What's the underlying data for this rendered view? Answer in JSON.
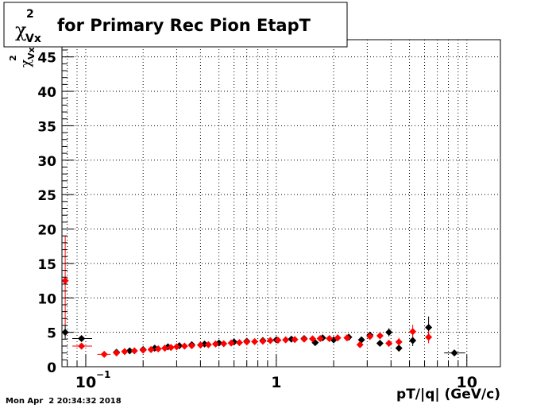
{
  "title": {
    "chi": "χ",
    "superscript": "2",
    "subscript": "Vx",
    "text": "for Primary Rec Pion EtapT"
  },
  "timestamp": "Mon Apr  2 20:34:32 2018",
  "chart_data": {
    "type": "scatter",
    "title": "χ²Vx for Primary Rec Pion EtapT",
    "xlabel": "pT/|q| (GeV/c)",
    "ylabel": "χ²Vx",
    "xscale": "log",
    "xlim": [
      0.075,
      15
    ],
    "ylim": [
      0,
      47.5
    ],
    "grid": true,
    "x_ticks": [
      {
        "value": 0.1,
        "base": "10",
        "exp": "−1"
      },
      {
        "value": 1,
        "base": "1",
        "exp": ""
      },
      {
        "value": 10,
        "base": "10",
        "exp": ""
      }
    ],
    "y_ticks": [
      0,
      5,
      10,
      15,
      20,
      25,
      30,
      35,
      40,
      45
    ],
    "series": [
      {
        "color": "#000000",
        "points": [
          {
            "x": 0.078,
            "y": 5.0,
            "ey": 1.0
          },
          {
            "x": 0.095,
            "y": 4.1,
            "ey": 0.4,
            "xlo": 0.085,
            "xhi": 0.108
          },
          {
            "x": 0.145,
            "y": 2.1,
            "ey": 0.2
          },
          {
            "x": 0.17,
            "y": 2.3
          },
          {
            "x": 0.2,
            "y": 2.5
          },
          {
            "x": 0.23,
            "y": 2.7
          },
          {
            "x": 0.27,
            "y": 2.9
          },
          {
            "x": 0.31,
            "y": 3.05
          },
          {
            "x": 0.36,
            "y": 3.2
          },
          {
            "x": 0.42,
            "y": 3.3
          },
          {
            "x": 0.5,
            "y": 3.45
          },
          {
            "x": 0.6,
            "y": 3.6
          },
          {
            "x": 0.7,
            "y": 3.7
          },
          {
            "x": 0.85,
            "y": 3.8
          },
          {
            "x": 1.0,
            "y": 3.9
          },
          {
            "x": 1.2,
            "y": 4.0
          },
          {
            "x": 1.4,
            "y": 4.1
          },
          {
            "x": 1.6,
            "y": 3.5,
            "ey": 0.4
          },
          {
            "x": 1.75,
            "y": 4.2
          },
          {
            "x": 2.0,
            "y": 3.9
          },
          {
            "x": 2.4,
            "y": 4.3
          },
          {
            "x": 2.8,
            "y": 3.9,
            "ey": 0.4
          },
          {
            "x": 3.1,
            "y": 4.6
          },
          {
            "x": 3.5,
            "y": 3.4,
            "ey": 0.4
          },
          {
            "x": 3.9,
            "y": 5.0,
            "ey": 0.6
          },
          {
            "x": 4.4,
            "y": 2.7,
            "ey": 0.5
          },
          {
            "x": 5.2,
            "y": 3.8,
            "ey": 0.8
          },
          {
            "x": 6.3,
            "y": 5.7,
            "ey": 1.6
          },
          {
            "x": 8.6,
            "y": 2.0,
            "ey": 0.3,
            "xlo": 7.6,
            "xhi": 9.8
          }
        ]
      },
      {
        "color": "#ff0000",
        "points": [
          {
            "x": 0.078,
            "y": 12.5,
            "ey": 6.5
          },
          {
            "x": 0.095,
            "y": 3.0,
            "ey": 0.4,
            "xlo": 0.085,
            "xhi": 0.108
          },
          {
            "x": 0.125,
            "y": 1.8,
            "xlo": 0.115,
            "xhi": 0.135
          },
          {
            "x": 0.145,
            "y": 2.0
          },
          {
            "x": 0.16,
            "y": 2.2
          },
          {
            "x": 0.18,
            "y": 2.3
          },
          {
            "x": 0.2,
            "y": 2.4
          },
          {
            "x": 0.22,
            "y": 2.5
          },
          {
            "x": 0.24,
            "y": 2.6
          },
          {
            "x": 0.26,
            "y": 2.7
          },
          {
            "x": 0.28,
            "y": 2.8
          },
          {
            "x": 0.3,
            "y": 2.9
          },
          {
            "x": 0.33,
            "y": 3.0
          },
          {
            "x": 0.36,
            "y": 3.05
          },
          {
            "x": 0.4,
            "y": 3.15
          },
          {
            "x": 0.44,
            "y": 3.2
          },
          {
            "x": 0.48,
            "y": 3.3
          },
          {
            "x": 0.53,
            "y": 3.35
          },
          {
            "x": 0.58,
            "y": 3.45
          },
          {
            "x": 0.64,
            "y": 3.5
          },
          {
            "x": 0.7,
            "y": 3.6
          },
          {
            "x": 0.77,
            "y": 3.65
          },
          {
            "x": 0.85,
            "y": 3.7
          },
          {
            "x": 0.93,
            "y": 3.8
          },
          {
            "x": 1.02,
            "y": 3.85
          },
          {
            "x": 1.12,
            "y": 3.9
          },
          {
            "x": 1.25,
            "y": 3.95
          },
          {
            "x": 1.4,
            "y": 4.0
          },
          {
            "x": 1.55,
            "y": 4.05
          },
          {
            "x": 1.7,
            "y": 4.1
          },
          {
            "x": 1.9,
            "y": 4.1
          },
          {
            "x": 2.1,
            "y": 4.2
          },
          {
            "x": 2.35,
            "y": 4.2
          },
          {
            "x": 2.75,
            "y": 3.2,
            "ey": 0.4
          },
          {
            "x": 3.1,
            "y": 4.4
          },
          {
            "x": 3.5,
            "y": 4.5,
            "ey": 0.4
          },
          {
            "x": 3.9,
            "y": 3.4,
            "ey": 0.5
          },
          {
            "x": 4.4,
            "y": 3.6,
            "ey": 0.6
          },
          {
            "x": 5.2,
            "y": 5.1,
            "ey": 1.0
          },
          {
            "x": 6.3,
            "y": 4.3,
            "ey": 0.9
          }
        ]
      }
    ]
  }
}
